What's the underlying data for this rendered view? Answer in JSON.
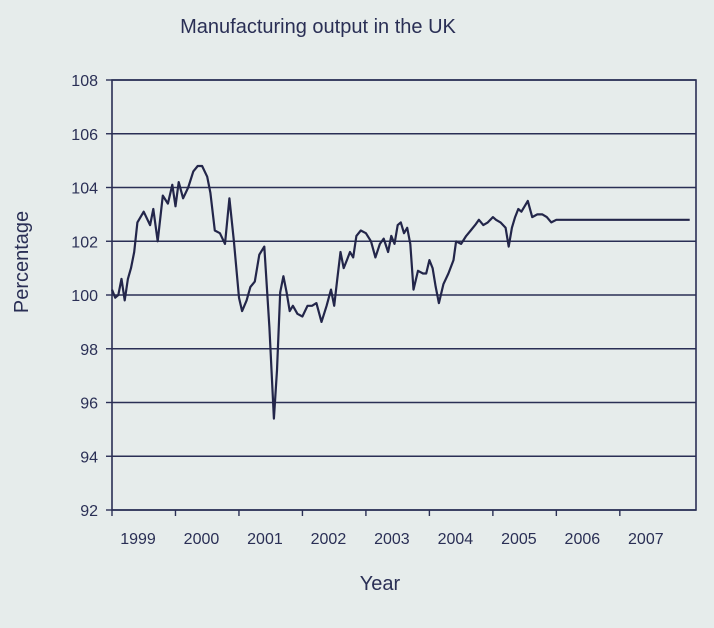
{
  "chart_data": {
    "type": "line",
    "title": "Manufacturing output in the UK",
    "xlabel": "Year",
    "ylabel": "Percentage",
    "xlim": [
      1999.0,
      2008.2
    ],
    "ylim": [
      92,
      108
    ],
    "yticks": [
      92,
      94,
      96,
      98,
      100,
      102,
      104,
      106,
      108
    ],
    "xticks": [
      "1999",
      "2000",
      "2001",
      "2002",
      "2003",
      "2004",
      "2005",
      "2006",
      "2007"
    ],
    "grid": true,
    "legend": "none",
    "line_color": "#23264a",
    "series": [
      {
        "x": [
          1999.0,
          1999.05,
          1999.1,
          1999.15,
          1999.2,
          1999.25,
          1999.3,
          1999.35,
          1999.4,
          1999.5,
          1999.6,
          1999.65,
          1999.72,
          1999.8,
          1999.88,
          1999.95,
          2000.0,
          2000.05,
          2000.12,
          2000.2,
          2000.28,
          2000.35,
          2000.42,
          2000.5,
          2000.55,
          2000.62,
          2000.7,
          2000.78,
          2000.85,
          2000.92,
          2001.0,
          2001.05,
          2001.12,
          2001.18,
          2001.25,
          2001.32,
          2001.4,
          2001.48,
          2001.55,
          2001.6,
          2001.65,
          2001.7,
          2001.75,
          2001.8,
          2001.85,
          2001.92,
          2002.0,
          2002.08,
          2002.15,
          2002.22,
          2002.3,
          2002.38,
          2002.45,
          2002.5,
          2002.55,
          2002.6,
          2002.65,
          2002.7,
          2002.75,
          2002.8,
          2002.85,
          2002.92,
          2003.0,
          2003.08,
          2003.15,
          2003.22,
          2003.28,
          2003.35,
          2003.4,
          2003.45,
          2003.5,
          2003.55,
          2003.6,
          2003.65,
          2003.7,
          2003.75,
          2003.82,
          2003.9,
          2003.95,
          2004.0,
          2004.05,
          2004.1,
          2004.15,
          2004.22,
          2004.3,
          2004.38,
          2004.42,
          2004.5,
          2004.58,
          2004.65,
          2004.72,
          2004.78,
          2004.85,
          2004.92,
          2005.0,
          2005.05,
          2005.12,
          2005.2,
          2005.25,
          2005.3,
          2005.35,
          2005.4,
          2005.45,
          2005.5,
          2005.55,
          2005.62,
          2005.7,
          2005.78,
          2005.85,
          2005.92,
          2006.0,
          2006.08,
          2006.15,
          2006.22,
          2006.3,
          2006.38,
          2006.45,
          2006.52,
          2006.6,
          2006.68,
          2006.75,
          2006.82,
          2006.9,
          2006.98,
          2007.05,
          2007.12,
          2007.2,
          2007.25,
          2007.32,
          2007.4,
          2007.48,
          2007.55,
          2007.6,
          2007.68,
          2007.75,
          2007.82,
          2007.88,
          2007.95,
          2008.0,
          2008.1
        ],
        "values": [
          100.2,
          99.9,
          100.0,
          100.6,
          99.8,
          100.6,
          101.0,
          101.6,
          102.7,
          103.1,
          102.6,
          103.2,
          102.0,
          103.7,
          103.4,
          104.1,
          103.3,
          104.2,
          103.6,
          104.0,
          104.6,
          104.8,
          104.8,
          104.4,
          103.8,
          102.4,
          102.3,
          101.9,
          103.6,
          102.0,
          99.9,
          99.4,
          99.8,
          100.3,
          100.5,
          101.5,
          101.8,
          98.8,
          95.4,
          97.2,
          100.1,
          100.7,
          100.1,
          99.4,
          99.6,
          99.3,
          99.2,
          99.6,
          99.6,
          99.7,
          99.0,
          99.6,
          100.2,
          99.6,
          100.6,
          101.6,
          101.0,
          101.3,
          101.6,
          101.4,
          102.2,
          102.4,
          102.3,
          102.0,
          101.4,
          101.9,
          102.1,
          101.6,
          102.2,
          101.9,
          102.6,
          102.7,
          102.3,
          102.5,
          101.9,
          100.2,
          100.9,
          100.8,
          100.8,
          101.3,
          101.0,
          100.3,
          99.7,
          100.4,
          100.8,
          101.3,
          102.0,
          101.9,
          102.2,
          102.4,
          102.6,
          102.8,
          102.6,
          102.7,
          102.9,
          102.8,
          102.7,
          102.5,
          101.8,
          102.5,
          102.9,
          103.2,
          103.1,
          103.3,
          103.5,
          102.9,
          103.0,
          103.0,
          102.9,
          102.7,
          102.8,
          102.8,
          102.8,
          102.8,
          102.8,
          102.8,
          102.8,
          102.8,
          102.8,
          102.8,
          102.8,
          102.8,
          102.8,
          102.8,
          102.8,
          102.8,
          102.8,
          102.8,
          102.8,
          102.8,
          102.8,
          102.8,
          102.8,
          102.8,
          102.8,
          102.8,
          102.8,
          102.8,
          102.8,
          102.8
        ]
      }
    ]
  }
}
